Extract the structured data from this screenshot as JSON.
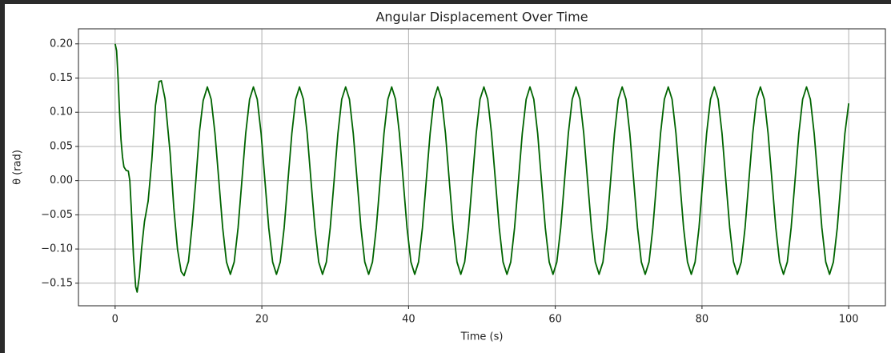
{
  "chart_data": {
    "type": "line",
    "title": "Angular Displacement Over Time",
    "xlabel": "Time (s)",
    "ylabel": "θ (rad)",
    "grid": true,
    "xlim": [
      -5,
      105
    ],
    "xticks": [
      0,
      20,
      40,
      60,
      80,
      100
    ],
    "ylim": [
      -0.183,
      0.222
    ],
    "yticks": [
      {
        "value": -0.15,
        "label": "−0.15"
      },
      {
        "value": -0.1,
        "label": "−0.10"
      },
      {
        "value": -0.05,
        "label": "−0.05"
      },
      {
        "value": 0,
        "label": "0.00"
      },
      {
        "value": 0.05,
        "label": "0.05"
      },
      {
        "value": 0.1,
        "label": "0.10"
      },
      {
        "value": 0.15,
        "label": "0.15"
      },
      {
        "value": 0.2,
        "label": "0.20"
      }
    ],
    "x": [
      0,
      0.2,
      0.4,
      0.6,
      0.8,
      1.0,
      1.2,
      1.5,
      1.8,
      2.0,
      2.2,
      2.5,
      2.8,
      3.0,
      3.3,
      3.6,
      4.0,
      4.5,
      5.0,
      5.5,
      6.0,
      6.3,
      6.8,
      7.5,
      8.0,
      8.5,
      9.0,
      9.4,
      10.0,
      10.5,
      11.0,
      11.5,
      12.0,
      12.57,
      13.09,
      13.61,
      14.14,
      14.66,
      15.18,
      15.71,
      16.23,
      16.76,
      17.28,
      17.8,
      18.33,
      18.85,
      19.37,
      19.9,
      20.42,
      20.94,
      21.47,
      21.99,
      22.51,
      23.04,
      23.56,
      24.09,
      24.61,
      25.13,
      25.66,
      26.18,
      26.7,
      27.23,
      27.75,
      28.27,
      28.8,
      29.32,
      29.85,
      30.37,
      30.89,
      31.42,
      31.94,
      32.46,
      32.99,
      33.51,
      34.03,
      34.56,
      35.08,
      35.6,
      36.13,
      36.65,
      37.18,
      37.7,
      38.22,
      38.75,
      39.27,
      39.79,
      40.32,
      40.84,
      41.36,
      41.89,
      42.41,
      42.94,
      43.46,
      43.98,
      44.51,
      45.03,
      45.55,
      46.08,
      46.6,
      47.12,
      47.65,
      48.17,
      48.69,
      49.22,
      49.74,
      50.27,
      50.79,
      51.31,
      51.84,
      52.36,
      52.88,
      53.41,
      53.93,
      54.45,
      54.98,
      55.5,
      56.03,
      56.55,
      57.07,
      57.6,
      58.12,
      58.64,
      59.17,
      59.69,
      60.21,
      60.74,
      61.26,
      61.78,
      62.31,
      62.83,
      63.36,
      63.88,
      64.4,
      64.93,
      65.45,
      65.97,
      66.5,
      67.02,
      67.54,
      68.07,
      68.59,
      69.12,
      69.64,
      70.16,
      70.69,
      71.21,
      71.73,
      72.26,
      72.78,
      73.3,
      73.83,
      74.35,
      74.87,
      75.4,
      75.92,
      76.45,
      76.97,
      77.49,
      78.02,
      78.54,
      79.06,
      79.59,
      80.11,
      80.63,
      81.16,
      81.68,
      82.2,
      82.73,
      83.25,
      83.78,
      84.3,
      84.82,
      85.35,
      85.87,
      86.39,
      86.92,
      87.44,
      87.96,
      88.49,
      89.01,
      89.54,
      90.06,
      90.58,
      91.11,
      91.63,
      92.15,
      92.68,
      93.2,
      93.72,
      94.25,
      94.77,
      95.29,
      95.82,
      96.34,
      96.87,
      97.39,
      97.91,
      98.44,
      98.96,
      99.48,
      100
    ],
    "series": [
      {
        "color": "#006400",
        "values": [
          0.2,
          0.19,
          0.15,
          0.1,
          0.06,
          0.035,
          0.02,
          0.015,
          0.014,
          0.0,
          -0.04,
          -0.11,
          -0.155,
          -0.163,
          -0.14,
          -0.1,
          -0.06,
          -0.03,
          0.03,
          0.11,
          0.145,
          0.146,
          0.12,
          0.04,
          -0.04,
          -0.1,
          -0.133,
          -0.139,
          -0.118,
          -0.065,
          0.0,
          0.072,
          0.117,
          0.137,
          0.119,
          0.069,
          0,
          -0.069,
          -0.119,
          -0.137,
          -0.119,
          -0.069,
          0,
          0.069,
          0.119,
          0.137,
          0.119,
          0.069,
          0,
          -0.069,
          -0.119,
          -0.137,
          -0.119,
          -0.069,
          0,
          0.069,
          0.119,
          0.137,
          0.119,
          0.069,
          0,
          -0.069,
          -0.119,
          -0.137,
          -0.119,
          -0.069,
          0,
          0.069,
          0.119,
          0.137,
          0.119,
          0.069,
          0,
          -0.069,
          -0.119,
          -0.137,
          -0.119,
          -0.069,
          0,
          0.069,
          0.119,
          0.137,
          0.119,
          0.069,
          0,
          -0.069,
          -0.119,
          -0.137,
          -0.119,
          -0.069,
          0,
          0.069,
          0.119,
          0.137,
          0.119,
          0.069,
          0,
          -0.069,
          -0.119,
          -0.137,
          -0.119,
          -0.069,
          0,
          0.069,
          0.119,
          0.137,
          0.119,
          0.069,
          0,
          -0.069,
          -0.119,
          -0.137,
          -0.119,
          -0.069,
          0,
          0.069,
          0.119,
          0.137,
          0.119,
          0.069,
          0,
          -0.069,
          -0.119,
          -0.137,
          -0.119,
          -0.069,
          0,
          0.069,
          0.119,
          0.137,
          0.119,
          0.069,
          0,
          -0.069,
          -0.119,
          -0.137,
          -0.119,
          -0.069,
          0,
          0.069,
          0.119,
          0.137,
          0.119,
          0.069,
          0,
          -0.069,
          -0.119,
          -0.137,
          -0.119,
          -0.069,
          0,
          0.069,
          0.119,
          0.137,
          0.119,
          0.069,
          0,
          -0.069,
          -0.119,
          -0.137,
          -0.119,
          -0.069,
          0,
          0.069,
          0.119,
          0.137,
          0.119,
          0.069,
          0,
          -0.069,
          -0.119,
          -0.137,
          -0.119,
          -0.069,
          0,
          0.069,
          0.119,
          0.137,
          0.119,
          0.069,
          0,
          -0.069,
          -0.119,
          -0.137,
          -0.119,
          -0.069,
          0,
          0.069,
          0.119,
          0.137,
          0.119,
          0.069,
          0,
          -0.069,
          -0.119,
          -0.137,
          -0.119,
          -0.069,
          0,
          0.069,
          0.113
        ]
      }
    ]
  }
}
